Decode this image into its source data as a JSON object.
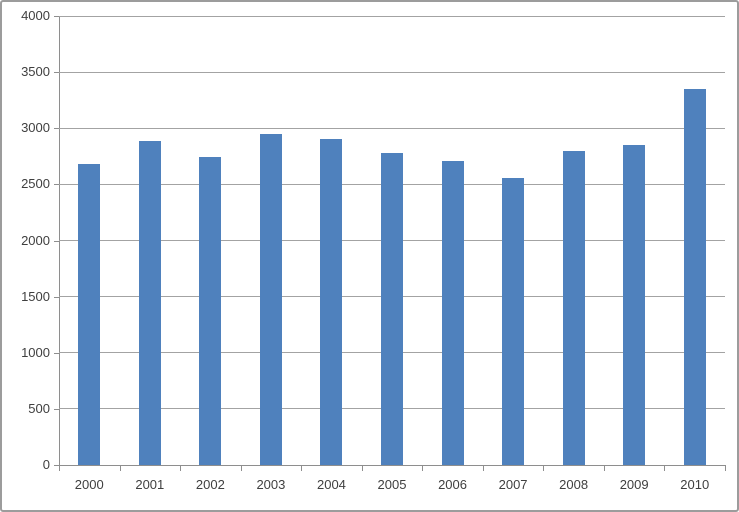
{
  "chart_data": {
    "type": "bar",
    "title": "",
    "xlabel": "",
    "ylabel": "",
    "categories": [
      "2000",
      "2001",
      "2002",
      "2003",
      "2004",
      "2005",
      "2006",
      "2007",
      "2008",
      "2009",
      "2010"
    ],
    "values": [
      2680,
      2890,
      2740,
      2950,
      2900,
      2780,
      2710,
      2560,
      2800,
      2850,
      3350
    ],
    "ylim": [
      0,
      4000
    ],
    "yticks": [
      0,
      500,
      1000,
      1500,
      2000,
      2500,
      3000,
      3500,
      4000
    ],
    "grid": "horizontal",
    "legend": "none",
    "bar_color": "#4f81bd",
    "gridline_color": "#a3a3a3",
    "axis_color": "#8e8e8e",
    "label_color": "#3f3f3f",
    "background_color": "#ffffff"
  }
}
